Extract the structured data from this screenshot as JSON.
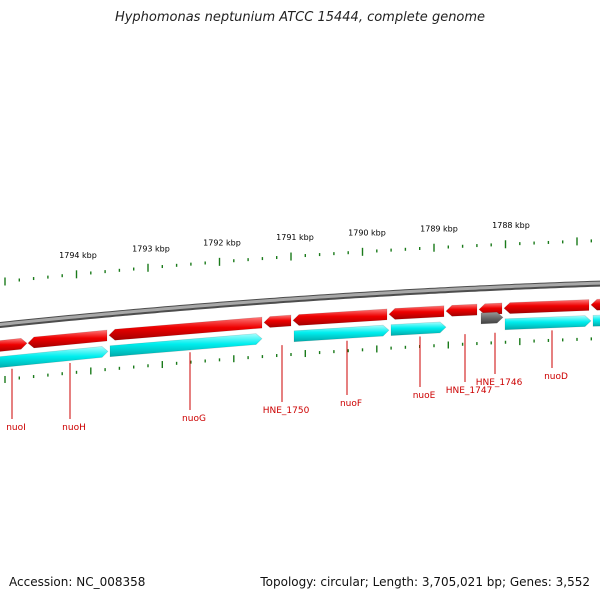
{
  "title": "Hyphomonas neptunium ATCC 15444, complete genome",
  "accession": "Accession: NC_008358",
  "summary": "Topology: circular; Length: 3,705,021 bp; Genes: 3,552",
  "colors": {
    "backbone": "#777777",
    "forward_gene": "#ee0000",
    "cds": "#00eeee",
    "other_gene": "#666666",
    "tick": "#1a7a1a",
    "gene_label": "#cc0000"
  },
  "scale_labels": [
    "1794 kbp",
    "1793 kbp",
    "1792 kbp",
    "1791 kbp",
    "1790 kbp",
    "1789 kbp",
    "1788 kbp"
  ],
  "gene_labels": [
    "nuoI",
    "nuoH",
    "nuoG",
    "HNE_1750",
    "nuoF",
    "nuoE",
    "HNE_1747",
    "HNE_1746",
    "nuoD"
  ]
}
